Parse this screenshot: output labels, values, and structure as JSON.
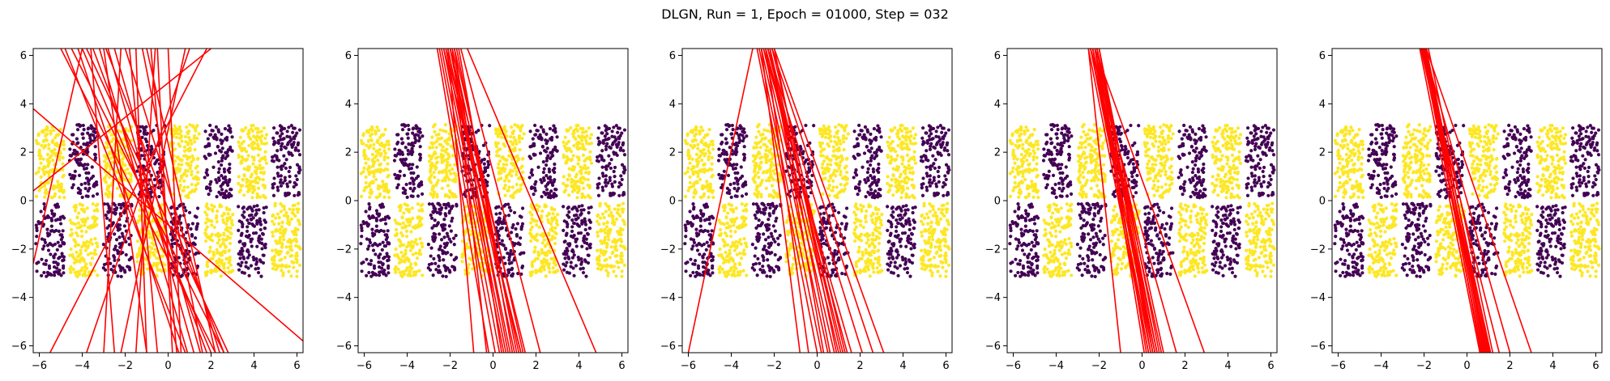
{
  "title": "DLGN, Run = 1, Epoch = 01000, Step = 032",
  "colors": {
    "class_a": "#fde725",
    "class_b": "#440154",
    "lines": "#ff0000",
    "axes": "#000000"
  },
  "chart_data": {
    "type": "scatter",
    "subplots": 5,
    "xlim": [
      -6.283,
      6.283
    ],
    "ylim": [
      -6.283,
      6.283
    ],
    "xticks": [
      -6,
      -4,
      -2,
      0,
      2,
      4,
      6
    ],
    "yticks": [
      -6,
      -4,
      -2,
      0,
      2,
      4,
      6
    ],
    "grid": false,
    "dataset": {
      "description": "checkerboard, x in [-2π, 2π], y in [-π, π]",
      "x_range": [
        -6.283,
        6.283
      ],
      "y_range": [
        -3.1416,
        3.1416
      ],
      "stripe_edges_x": [
        -6.283,
        -4.712,
        -3.1416,
        -1.5708,
        0,
        1.5708,
        3.1416,
        4.712,
        6.283
      ],
      "upper_band_classes": [
        "yellow",
        "purple",
        "yellow",
        "purple",
        "yellow",
        "purple",
        "yellow",
        "purple"
      ],
      "lower_band_classes": [
        "purple",
        "yellow",
        "purple",
        "yellow",
        "purple",
        "yellow",
        "purple",
        "yellow"
      ]
    },
    "panels": [
      {
        "lines": [
          [
            -5.0,
            6.283,
            2.2,
            -6.283
          ],
          [
            -4.5,
            6.283,
            2.6,
            -6.283
          ],
          [
            -4.0,
            6.283,
            2.0,
            -6.283
          ],
          [
            -3.5,
            6.283,
            1.8,
            -6.283
          ],
          [
            -4.8,
            6.283,
            0.8,
            -6.283
          ],
          [
            -2.0,
            6.283,
            2.4,
            -6.283
          ],
          [
            -0.8,
            6.283,
            0.4,
            -6.283
          ],
          [
            -1.8,
            6.283,
            -0.5,
            -6.283
          ],
          [
            -0.5,
            6.283,
            0.2,
            -6.283
          ],
          [
            -1.2,
            6.283,
            1.6,
            -6.283
          ],
          [
            -2.8,
            6.283,
            1.2,
            -6.283
          ],
          [
            -3.2,
            6.283,
            0.9,
            -6.283
          ],
          [
            -3.0,
            6.283,
            -1.0,
            -6.283
          ],
          [
            -1.5,
            6.283,
            -1.0,
            -6.283
          ],
          [
            -3.8,
            6.283,
            2.8,
            -6.283
          ],
          [
            -2.5,
            6.283,
            1.5,
            -6.283
          ],
          [
            0.0,
            6.283,
            0.6,
            -6.283
          ],
          [
            -4.2,
            6.283,
            0.5,
            -6.283
          ],
          [
            -3.6,
            6.283,
            -2.5,
            -6.283
          ],
          [
            -2.2,
            6.283,
            -3.0,
            -6.283
          ],
          [
            1.8,
            6.283,
            -5.5,
            -6.283
          ],
          [
            1.0,
            6.283,
            -3.8,
            -6.283
          ],
          [
            2.0,
            6.283,
            -6.283,
            0.4
          ],
          [
            -6.283,
            3.8,
            6.283,
            -5.8
          ],
          [
            -6.283,
            -2.6,
            -4.0,
            6.283
          ],
          [
            -1.0,
            6.283,
            2.2,
            -6.283
          ],
          [
            0.8,
            6.283,
            -2.2,
            -6.283
          ],
          [
            -0.6,
            6.283,
            -1.5,
            -6.283
          ],
          [
            -2.9,
            6.283,
            2.6,
            -6.283
          ]
        ]
      },
      {
        "lines": [
          [
            -2.3,
            6.283,
            0.5,
            -6.283
          ],
          [
            -2.1,
            6.283,
            0.8,
            -6.283
          ],
          [
            -2.0,
            6.283,
            1.0,
            -6.283
          ],
          [
            -1.9,
            6.283,
            1.2,
            -6.283
          ],
          [
            -2.2,
            6.283,
            0.6,
            -6.283
          ],
          [
            -1.8,
            6.283,
            1.4,
            -6.283
          ],
          [
            -2.4,
            6.283,
            0.3,
            -6.283
          ],
          [
            -2.0,
            6.283,
            0.7,
            -6.283
          ],
          [
            -1.7,
            6.283,
            1.1,
            -6.283
          ],
          [
            -2.5,
            6.283,
            0.1,
            -6.283
          ],
          [
            -2.2,
            6.283,
            1.3,
            -6.283
          ],
          [
            -1.6,
            6.283,
            0.9,
            -6.283
          ],
          [
            -2.6,
            6.283,
            -0.2,
            -6.283
          ],
          [
            -2.1,
            6.283,
            -0.9,
            -6.283
          ],
          [
            -1.9,
            6.283,
            -0.3,
            -6.283
          ],
          [
            -2.3,
            6.283,
            1.3,
            -6.283
          ],
          [
            -2.0,
            6.283,
            1.5,
            -6.283
          ],
          [
            -1.8,
            6.283,
            0.4,
            -6.283
          ],
          [
            -1.5,
            6.283,
            2.2,
            -6.283
          ],
          [
            -1.2,
            6.283,
            4.8,
            -6.283
          ]
        ]
      },
      {
        "lines": [
          [
            -2.5,
            6.283,
            0.8,
            -6.283
          ],
          [
            -2.4,
            6.283,
            1.0,
            -6.283
          ],
          [
            -2.3,
            6.283,
            1.2,
            -6.283
          ],
          [
            -2.2,
            6.283,
            1.1,
            -6.283
          ],
          [
            -2.6,
            6.283,
            0.5,
            -6.283
          ],
          [
            -2.1,
            6.283,
            1.3,
            -6.283
          ],
          [
            -2.7,
            6.283,
            0.2,
            -6.283
          ],
          [
            -2.0,
            6.283,
            0.9,
            -6.283
          ],
          [
            -2.4,
            6.283,
            1.4,
            -6.283
          ],
          [
            -2.8,
            6.283,
            0.0,
            -6.283
          ],
          [
            -2.2,
            6.283,
            0.6,
            -6.283
          ],
          [
            -2.5,
            6.283,
            1.6,
            -6.283
          ],
          [
            -2.3,
            6.283,
            2.1,
            -6.283
          ],
          [
            -2.1,
            6.283,
            2.6,
            -6.283
          ],
          [
            -2.0,
            6.283,
            3.1,
            -6.283
          ],
          [
            -2.4,
            6.283,
            -0.4,
            -6.283
          ],
          [
            -2.6,
            6.283,
            -0.8,
            -6.283
          ],
          [
            -2.2,
            6.283,
            0.3,
            -6.283
          ],
          [
            -3.0,
            6.283,
            -6.0,
            -6.283
          ]
        ]
      },
      {
        "lines": [
          [
            -2.3,
            6.283,
            0.5,
            -6.283
          ],
          [
            -2.2,
            6.283,
            0.6,
            -6.283
          ],
          [
            -2.1,
            6.283,
            0.7,
            -6.283
          ],
          [
            -2.4,
            6.283,
            0.4,
            -6.283
          ],
          [
            -2.0,
            6.283,
            0.8,
            -6.283
          ],
          [
            -2.3,
            6.283,
            0.3,
            -6.283
          ],
          [
            -2.2,
            6.283,
            0.9,
            -6.283
          ],
          [
            -2.1,
            6.283,
            0.2,
            -6.283
          ],
          [
            -2.4,
            6.283,
            0.6,
            -6.283
          ],
          [
            -2.0,
            6.283,
            0.5,
            -6.283
          ],
          [
            -2.3,
            6.283,
            0.7,
            -6.283
          ],
          [
            -2.2,
            6.283,
            0.1,
            -6.283
          ],
          [
            -2.5,
            6.283,
            0.3,
            -6.283
          ],
          [
            -2.1,
            6.283,
            1.0,
            -6.283
          ],
          [
            -2.4,
            6.283,
            1.6,
            -6.283
          ],
          [
            -2.2,
            6.283,
            2.9,
            -6.283
          ],
          [
            -2.5,
            6.283,
            -1.0,
            -6.283
          ],
          [
            -2.0,
            6.283,
            0.4,
            -6.283
          ]
        ]
      },
      {
        "lines": [
          [
            -2.1,
            6.283,
            0.8,
            -6.283
          ],
          [
            -2.0,
            6.283,
            0.9,
            -6.283
          ],
          [
            -1.9,
            6.283,
            1.0,
            -6.283
          ],
          [
            -2.1,
            6.283,
            0.7,
            -6.283
          ],
          [
            -2.0,
            6.283,
            1.1,
            -6.283
          ],
          [
            -1.95,
            6.283,
            0.85,
            -6.283
          ],
          [
            -2.05,
            6.283,
            0.95,
            -6.283
          ],
          [
            -1.9,
            6.283,
            0.75,
            -6.283
          ],
          [
            -2.15,
            6.283,
            1.05,
            -6.283
          ],
          [
            -2.0,
            6.283,
            0.65,
            -6.283
          ],
          [
            -1.8,
            6.283,
            1.2,
            -6.283
          ],
          [
            -2.1,
            6.283,
            1.5,
            -6.283
          ],
          [
            -2.0,
            6.283,
            2.0,
            -6.283
          ],
          [
            -1.9,
            6.283,
            3.0,
            -6.283
          ],
          [
            -2.2,
            6.283,
            0.6,
            -6.283
          ]
        ]
      }
    ]
  }
}
